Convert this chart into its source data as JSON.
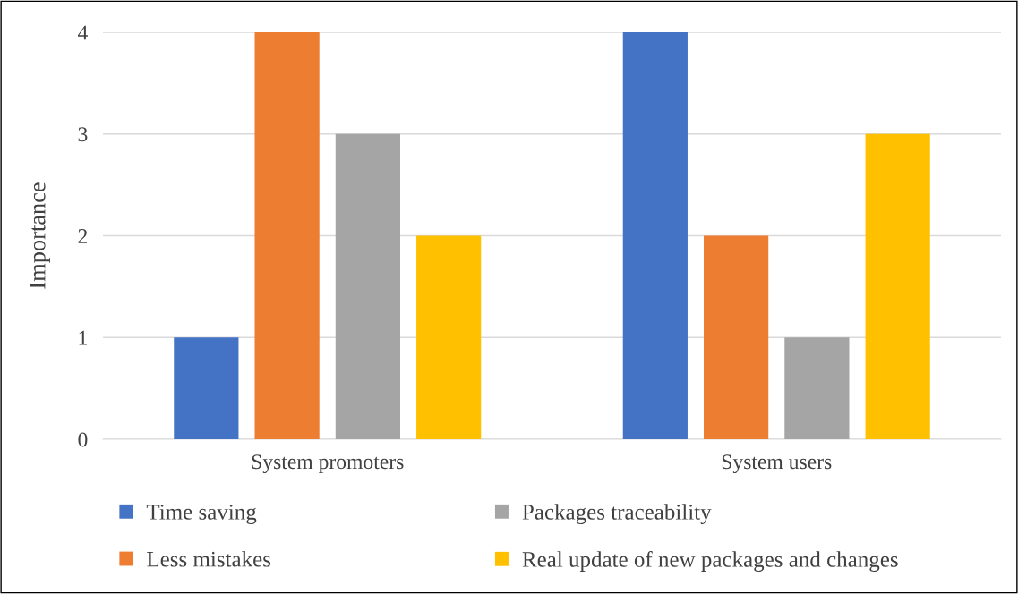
{
  "chart_data": {
    "type": "bar",
    "ylabel": "Importance",
    "categories": [
      "System promoters",
      "System users"
    ],
    "series": [
      {
        "name": "Time saving",
        "color": "#4472c4",
        "values": [
          1,
          4
        ]
      },
      {
        "name": "Less mistakes",
        "color": "#ed7d31",
        "values": [
          4,
          2
        ]
      },
      {
        "name": "Packages traceability",
        "color": "#a5a5a5",
        "values": [
          3,
          1
        ]
      },
      {
        "name": "Real update of new packages and changes",
        "color": "#ffc000",
        "values": [
          2,
          3
        ]
      }
    ],
    "ylim": [
      0,
      4
    ],
    "yticks": [
      0,
      1,
      2,
      3,
      4
    ],
    "grid": "y",
    "legend": "bottom"
  }
}
